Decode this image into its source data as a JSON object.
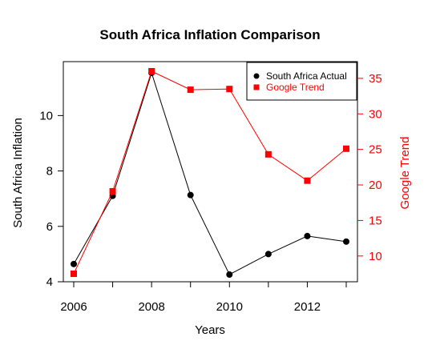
{
  "chart_data": {
    "type": "line",
    "title": "South Africa Inflation Comparison",
    "xlabel": "Years",
    "ylabel_left": "South Africa Inflation",
    "ylabel_right": "Google Trend",
    "x": [
      2006,
      2007,
      2008,
      2009,
      2010,
      2011,
      2012,
      2013
    ],
    "x_ticks": [
      2006,
      2008,
      2010,
      2012
    ],
    "xlim": [
      2006,
      2013
    ],
    "ylim_left": [
      4,
      11.6
    ],
    "y_ticks_left": [
      4,
      6,
      8,
      10
    ],
    "ylim_right": [
      7.5,
      36
    ],
    "y_ticks_right": [
      10,
      15,
      20,
      25,
      30,
      35
    ],
    "grid": false,
    "legend_position": "top-right",
    "series": [
      {
        "name": "South Africa Actual",
        "axis": "left",
        "marker": "circle",
        "color": "#000000",
        "values": [
          4.64,
          7.1,
          11.54,
          7.13,
          4.26,
          5.0,
          5.65,
          5.45
        ]
      },
      {
        "name": "Google Trend",
        "axis": "right",
        "marker": "square",
        "color": "#ff0000",
        "values": [
          7.5,
          19.1,
          36.0,
          33.4,
          33.5,
          24.3,
          20.6,
          25.1
        ]
      }
    ]
  }
}
